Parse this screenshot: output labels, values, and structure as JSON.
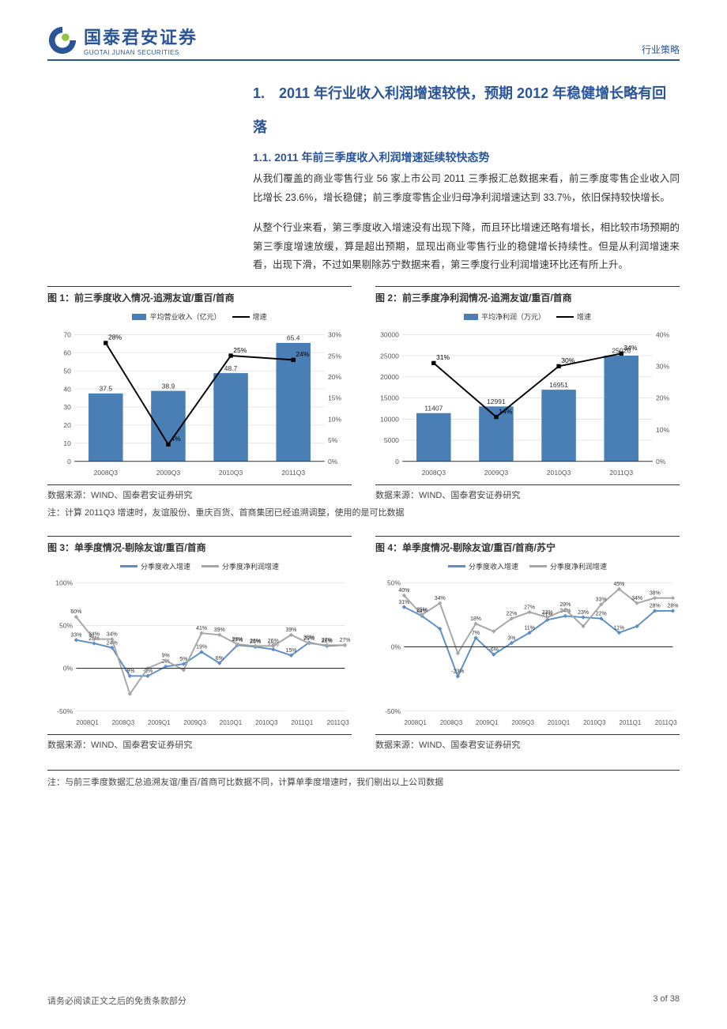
{
  "header": {
    "company_cn": "国泰君安证券",
    "company_en": "GUOTAI JUNAN SECURITIES",
    "category": "行业策略"
  },
  "section": {
    "h1": "1.　2011 年行业收入利润增速较快，预期 2012 年稳健增长略有回落",
    "h2": "1.1. 2011 年前三季度收入利润增速延续较快态势",
    "p1": "从我们覆盖的商业零售行业 56 家上市公司 2011 三季报汇总数据来看，前三季度零售企业收入同比增长 23.6%，增长稳健；前三季度零售企业归母净利润增速达到 33.7%，依旧保持较快增长。",
    "p2": "从整个行业来看，第三季度收入增速没有出现下降，而且环比增速还略有增长，相比较市场预期的第三季度增速放缓，算是超出预期，显现出商业零售行业的稳健增长持续性。但是从利润增速来看，出现下滑，不过如果剔除苏宁数据来看，第三季度行业利润增速环比还有所上升。"
  },
  "fig1": {
    "title": "图 1：前三季度收入情况-追溯友谊/重百/首商",
    "type": "bar+line",
    "categories": [
      "2008Q3",
      "2009Q3",
      "2010Q3",
      "2011Q3"
    ],
    "bar_series_label": "平均营业收入（亿元）",
    "bar_values": [
      37.5,
      38.9,
      48.7,
      65.4
    ],
    "bar_color": "#4a7fb5",
    "y1_lim": [
      0,
      70
    ],
    "y1_step": 10,
    "line_series_label": "增速",
    "line_values": [
      28,
      4,
      25,
      24
    ],
    "line_labels": [
      "28%",
      "4%",
      "25%",
      "24%"
    ],
    "line_color": "#000000",
    "y2_lim": [
      0,
      30
    ],
    "y2_step": 5,
    "background": "#ffffff",
    "grid_color": "#d8d8d8",
    "source": "数据来源：WIND、国泰君安证券研究"
  },
  "fig2": {
    "title": "图 2：前三季度净利润情况-追溯友谊/重百/首商",
    "type": "bar+line",
    "categories": [
      "2008Q3",
      "2009Q3",
      "2010Q3",
      "2011Q3"
    ],
    "bar_series_label": "平均净利润（万元）",
    "bar_values": [
      11407,
      12991,
      16951,
      25026
    ],
    "bar_color": "#4a7fb5",
    "y1_lim": [
      0,
      30000
    ],
    "y1_step": 5000,
    "line_series_label": "增速",
    "line_values": [
      31,
      14,
      30,
      34
    ],
    "line_labels": [
      "31%",
      "14%",
      "30%",
      "34%"
    ],
    "line_color": "#000000",
    "y2_lim": [
      0,
      40
    ],
    "y2_step": 10,
    "background": "#ffffff",
    "grid_color": "#d8d8d8",
    "source": "数据来源：WIND、国泰君安证券研究"
  },
  "fig12_note": "注：计算 2011Q3 增速时，友谊股份、重庆百货、首商集团已经追溯调整，使用的是可比数据",
  "fig3": {
    "title": "图 3：单季度情况-剔除友谊/重百/首商",
    "type": "line",
    "categories": [
      "2008Q1",
      "2008Q3",
      "2009Q1",
      "2009Q3",
      "2010Q1",
      "2010Q3",
      "2011Q1",
      "2011Q3"
    ],
    "series": [
      {
        "label": "分季度收入增速",
        "color": "#5b8dc6",
        "values": [
          33,
          29,
          24,
          -9,
          -9,
          2,
          5,
          19,
          6,
          27,
          25,
          22,
          15,
          30,
          26,
          27
        ],
        "labels": [
          "33%",
          "29%",
          "24%",
          "-9%",
          "-9%",
          "2%",
          "5%",
          "19%",
          "6%",
          "27%",
          "25%",
          "22%",
          "15%",
          "30%",
          "26%",
          "27%"
        ]
      },
      {
        "label": "分季度净利润增速",
        "color": "#a6a6a6",
        "values": [
          60,
          34,
          34,
          -30,
          0,
          9,
          -2,
          41,
          39,
          28,
          26,
          26,
          39,
          29,
          27,
          27
        ],
        "labels": [
          "60%",
          "34%",
          "34%",
          "",
          "",
          "9%",
          "",
          "41%",
          "39%",
          "28%",
          "26%",
          "26%",
          "39%",
          "29%",
          "27%",
          ""
        ]
      }
    ],
    "y_lim": [
      -50,
      100
    ],
    "y_step": 50,
    "background": "#ffffff",
    "source": "数据来源：WIND、国泰君安证券研究"
  },
  "fig4": {
    "title": "图 4：单季度情况-剔除友谊/重百/首商/苏宁",
    "type": "line",
    "categories": [
      "2008Q1",
      "2008Q3",
      "2009Q1",
      "2009Q3",
      "2010Q1",
      "2010Q3",
      "2011Q1",
      "2011Q3"
    ],
    "series": [
      {
        "label": "分季度收入增速",
        "color": "#5b8dc6",
        "values": [
          31,
          24,
          14,
          -23,
          7,
          -6,
          3,
          11,
          21,
          24,
          23,
          22,
          11,
          16,
          28,
          28
        ],
        "labels": [
          "31%",
          "24%",
          "",
          "-23%",
          "7%",
          "-6%",
          "3%",
          "11%",
          "21%",
          "24%",
          "23%",
          "22%",
          "11%",
          "",
          "28%",
          "28%"
        ]
      },
      {
        "label": "分季度净利润增速",
        "color": "#a6a6a6",
        "values": [
          40,
          25,
          34,
          -5,
          18,
          12,
          22,
          27,
          23,
          29,
          16,
          33,
          45,
          34,
          38,
          38
        ],
        "labels": [
          "40%",
          "25%",
          "34%",
          "",
          "18%",
          "",
          "22%",
          "27%",
          "23%",
          "29%",
          "",
          "33%",
          "45%",
          "34%",
          "38%",
          ""
        ]
      }
    ],
    "y_lim": [
      -50,
      50
    ],
    "y_step": 50,
    "background": "#ffffff",
    "source": "数据来源：WIND、国泰君安证券研究"
  },
  "fig34_note": "注：与前三季度数据汇总追溯友谊/重百/首商可比数据不同，计算单季度增速时，我们剔出以上公司数据",
  "footer": {
    "disclaimer": "请务必阅读正文之后的免责条款部分",
    "page": "3 of 38"
  },
  "colors": {
    "brand_blue": "#2a5599",
    "bar_blue": "#4a7fb5",
    "line_blue": "#5b8dc6",
    "line_grey": "#a6a6a6",
    "rule": "#333333"
  }
}
